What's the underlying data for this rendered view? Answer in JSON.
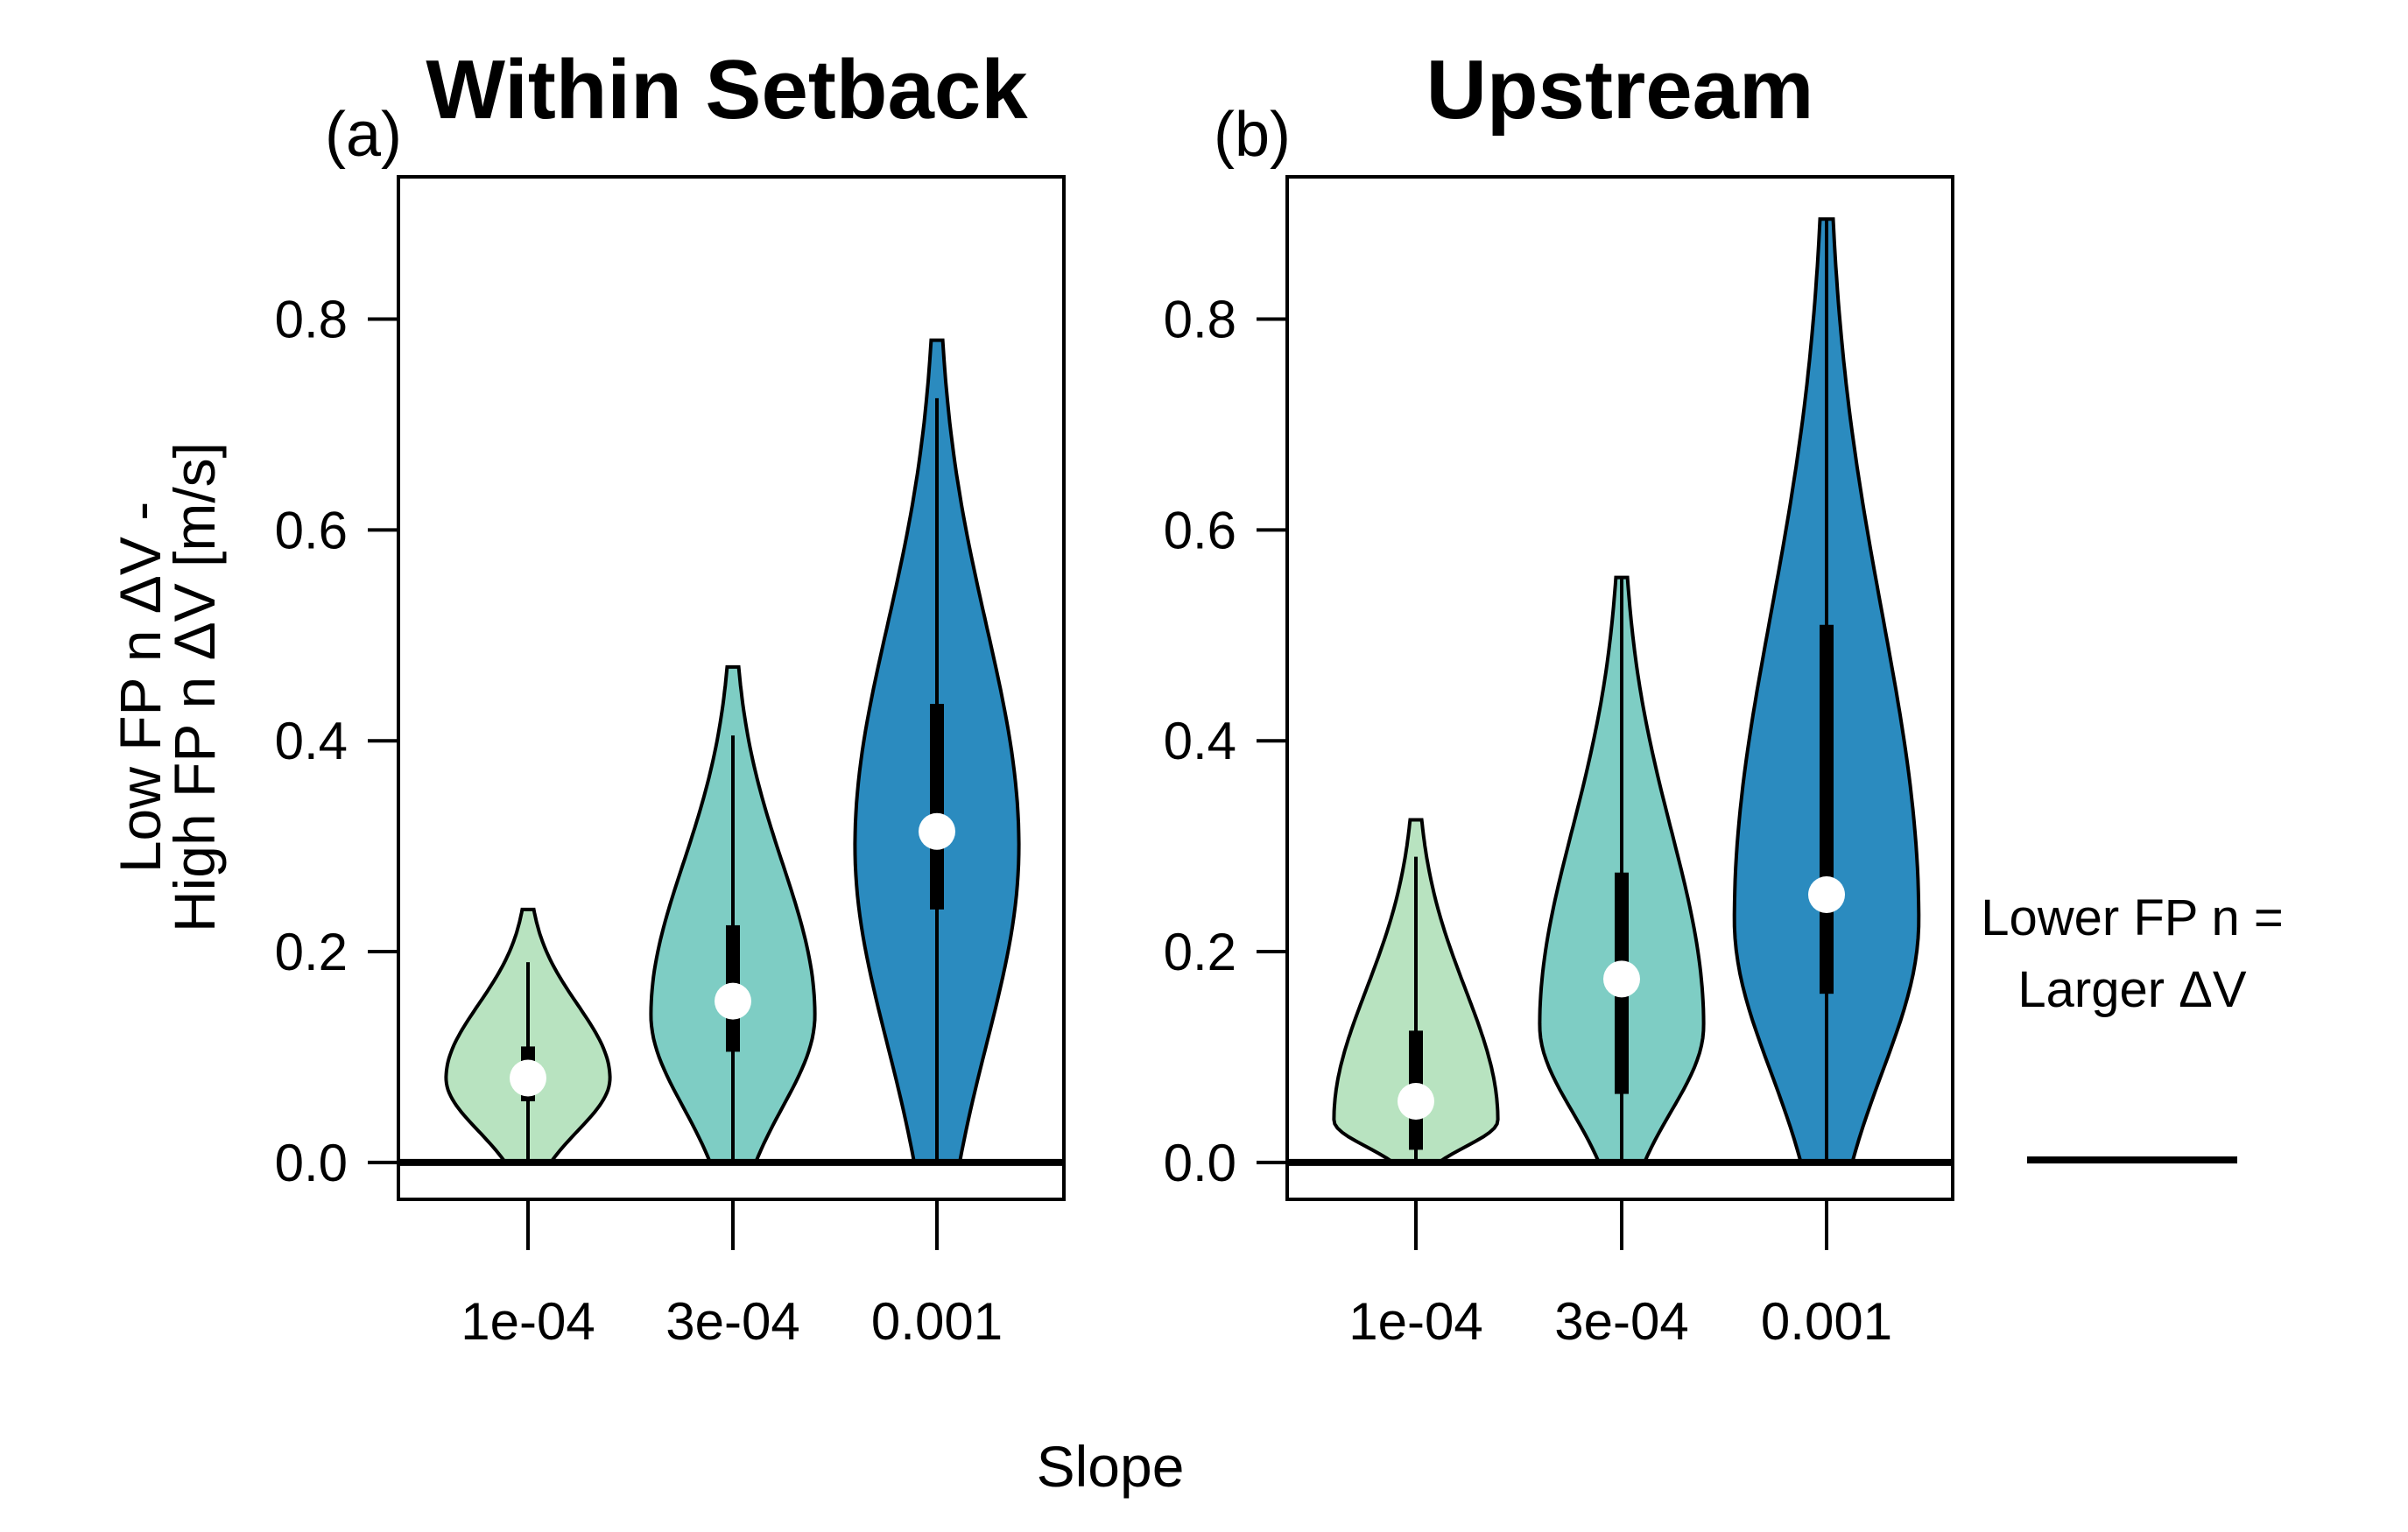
{
  "chart_data": [
    {
      "type": "violin",
      "panel_label": "(a)",
      "title": "Within Setback",
      "ylabel_line1": "Low FP n ΔV -",
      "ylabel_line2": "High FP n ΔV [m/s]",
      "xlabel": "Slope",
      "categories": [
        "1e-04",
        "3e-04",
        "0.001"
      ],
      "yticks": [
        "0.0",
        "0.2",
        "0.4",
        "0.6",
        "0.8"
      ],
      "ylim": [
        -0.035,
        0.935
      ],
      "reference_line": 0,
      "colors": [
        "#b8e3c0",
        "#7ecdc4",
        "#2b8bbf"
      ],
      "violins": [
        {
          "min": 0.0,
          "max": 0.24,
          "whisker_low": 0.0,
          "whisker_high": 0.19,
          "q1": 0.058,
          "q3": 0.11,
          "median": 0.08,
          "peak": 0.08,
          "half_width": 0.4
        },
        {
          "min": 0.0,
          "max": 0.47,
          "whisker_low": 0.0,
          "whisker_high": 0.405,
          "q1": 0.105,
          "q3": 0.225,
          "median": 0.153,
          "peak": 0.14,
          "half_width": 0.4
        },
        {
          "min": 0.0,
          "max": 0.78,
          "whisker_low": 0.0,
          "whisker_high": 0.725,
          "q1": 0.24,
          "q3": 0.435,
          "median": 0.314,
          "peak": 0.3,
          "half_width": 0.4
        }
      ]
    },
    {
      "type": "violin",
      "panel_label": "(b)",
      "title": "Upstream",
      "categories": [
        "1e-04",
        "3e-04",
        "0.001"
      ],
      "yticks": [
        "0.0",
        "0.2",
        "0.4",
        "0.6",
        "0.8"
      ],
      "ylim": [
        -0.035,
        0.935
      ],
      "reference_line": 0,
      "colors": [
        "#b8e3c0",
        "#7ecdc4",
        "#2b8bbf"
      ],
      "violins": [
        {
          "min": 0.0,
          "max": 0.325,
          "whisker_low": 0.0,
          "whisker_high": 0.29,
          "q1": 0.012,
          "q3": 0.125,
          "median": 0.058,
          "peak": 0.04,
          "half_width": 0.4
        },
        {
          "min": 0.0,
          "max": 0.555,
          "whisker_low": 0.0,
          "whisker_high": 0.555,
          "q1": 0.065,
          "q3": 0.275,
          "median": 0.174,
          "peak": 0.13,
          "half_width": 0.4
        },
        {
          "min": 0.0,
          "max": 0.895,
          "whisker_low": 0.0,
          "whisker_high": 0.895,
          "q1": 0.16,
          "q3": 0.51,
          "median": 0.254,
          "peak": 0.23,
          "half_width": 0.45
        }
      ]
    }
  ],
  "legend_note": {
    "line1": "Lower FP n =",
    "line2": "Larger ΔV"
  }
}
